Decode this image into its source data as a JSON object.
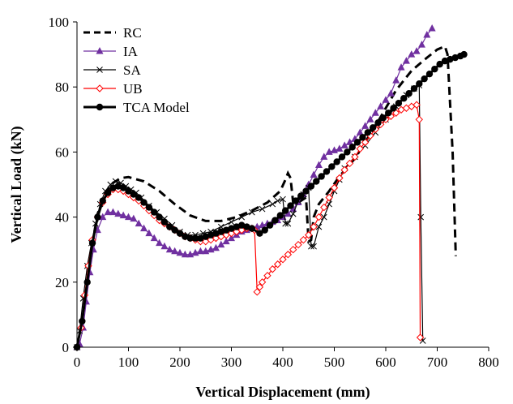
{
  "chart_data": {
    "type": "line",
    "title": "",
    "xlabel": "Vertical Displacement (mm)",
    "ylabel": "Vertical Load (kN)",
    "xlim": [
      0,
      800
    ],
    "ylim": [
      0,
      100
    ],
    "x_ticks": [
      "0",
      "100",
      "200",
      "300",
      "400",
      "500",
      "600",
      "700",
      "800"
    ],
    "y_ticks": [
      "0",
      "20",
      "40",
      "60",
      "80",
      "100"
    ],
    "grid": false,
    "legend_position": "top-left",
    "series": [
      {
        "name": "RC",
        "color": "#000000",
        "style": "dashed",
        "marker": "none",
        "points": [
          [
            0,
            0
          ],
          [
            10,
            8
          ],
          [
            20,
            20
          ],
          [
            30,
            32
          ],
          [
            40,
            41
          ],
          [
            55,
            47
          ],
          [
            70,
            50.5
          ],
          [
            85,
            52
          ],
          [
            100,
            52.3
          ],
          [
            130,
            51
          ],
          [
            160,
            48
          ],
          [
            190,
            44
          ],
          [
            220,
            40.5
          ],
          [
            250,
            38.8
          ],
          [
            280,
            38.8
          ],
          [
            310,
            40
          ],
          [
            340,
            42
          ],
          [
            370,
            44.5
          ],
          [
            395,
            48
          ],
          [
            405,
            51.5
          ],
          [
            410,
            53.5
          ],
          [
            415,
            52
          ],
          [
            420,
            44.5
          ],
          [
            430,
            44.5
          ],
          [
            445,
            46
          ],
          [
            450,
            32.5
          ],
          [
            455,
            33
          ],
          [
            460,
            40
          ],
          [
            470,
            44
          ],
          [
            490,
            48
          ],
          [
            510,
            52.5
          ],
          [
            540,
            58
          ],
          [
            580,
            68
          ],
          [
            620,
            79
          ],
          [
            650,
            85
          ],
          [
            680,
            89
          ],
          [
            700,
            91.5
          ],
          [
            715,
            92.5
          ],
          [
            720,
            90
          ],
          [
            730,
            60
          ],
          [
            736,
            28
          ]
        ]
      },
      {
        "name": "IA",
        "color": "#7030A0",
        "style": "solid",
        "marker": "triangle",
        "points": [
          [
            0,
            0
          ],
          [
            5,
            1
          ],
          [
            12,
            6
          ],
          [
            18,
            14
          ],
          [
            25,
            23
          ],
          [
            32,
            30
          ],
          [
            40,
            36
          ],
          [
            50,
            40
          ],
          [
            60,
            41.5
          ],
          [
            70,
            41.5
          ],
          [
            80,
            41
          ],
          [
            90,
            40.5
          ],
          [
            100,
            40
          ],
          [
            110,
            39.5
          ],
          [
            120,
            38
          ],
          [
            130,
            36.5
          ],
          [
            140,
            35
          ],
          [
            150,
            33.5
          ],
          [
            160,
            32
          ],
          [
            170,
            31
          ],
          [
            180,
            30
          ],
          [
            190,
            29.5
          ],
          [
            200,
            29
          ],
          [
            210,
            28.5
          ],
          [
            220,
            28.5
          ],
          [
            230,
            29
          ],
          [
            240,
            29.5
          ],
          [
            250,
            29.5
          ],
          [
            260,
            30
          ],
          [
            270,
            30.5
          ],
          [
            280,
            31.5
          ],
          [
            290,
            32.5
          ],
          [
            300,
            33.5
          ],
          [
            310,
            34.5
          ],
          [
            320,
            35.5
          ],
          [
            330,
            36
          ],
          [
            340,
            36.5
          ],
          [
            350,
            37
          ],
          [
            360,
            37.5
          ],
          [
            370,
            38
          ],
          [
            380,
            38.5
          ],
          [
            390,
            39
          ],
          [
            400,
            40
          ],
          [
            410,
            41
          ],
          [
            420,
            42.5
          ],
          [
            430,
            44.5
          ],
          [
            440,
            47
          ],
          [
            450,
            50
          ],
          [
            460,
            53
          ],
          [
            470,
            56
          ],
          [
            480,
            58.5
          ],
          [
            490,
            60
          ],
          [
            500,
            60.5
          ],
          [
            510,
            61
          ],
          [
            520,
            62
          ],
          [
            530,
            63
          ],
          [
            540,
            64
          ],
          [
            550,
            66
          ],
          [
            560,
            68
          ],
          [
            570,
            70
          ],
          [
            580,
            72
          ],
          [
            590,
            74
          ],
          [
            600,
            76
          ],
          [
            610,
            78
          ],
          [
            620,
            82
          ],
          [
            630,
            86
          ],
          [
            640,
            88
          ],
          [
            650,
            90
          ],
          [
            660,
            91
          ],
          [
            670,
            93
          ],
          [
            680,
            96
          ],
          [
            690,
            98
          ]
        ]
      },
      {
        "name": "SA",
        "color": "#000000",
        "style": "solid",
        "marker": "x",
        "points": [
          [
            0,
            0
          ],
          [
            5,
            5
          ],
          [
            12,
            15
          ],
          [
            20,
            25
          ],
          [
            28,
            32
          ],
          [
            36,
            38
          ],
          [
            45,
            44
          ],
          [
            55,
            48
          ],
          [
            65,
            50
          ],
          [
            75,
            51
          ],
          [
            85,
            50.5
          ],
          [
            95,
            49.5
          ],
          [
            105,
            48.5
          ],
          [
            115,
            47.5
          ],
          [
            125,
            46
          ],
          [
            140,
            43.5
          ],
          [
            155,
            41.5
          ],
          [
            170,
            39.5
          ],
          [
            185,
            37.5
          ],
          [
            200,
            35.5
          ],
          [
            215,
            34.5
          ],
          [
            230,
            34.5
          ],
          [
            245,
            35
          ],
          [
            260,
            35.5
          ],
          [
            280,
            37
          ],
          [
            300,
            38.5
          ],
          [
            320,
            40
          ],
          [
            340,
            41.5
          ],
          [
            360,
            42.5
          ],
          [
            380,
            44
          ],
          [
            390,
            45
          ],
          [
            400,
            45.5
          ],
          [
            405,
            38
          ],
          [
            410,
            38
          ],
          [
            420,
            41
          ],
          [
            430,
            45
          ],
          [
            440,
            47
          ],
          [
            450,
            49
          ],
          [
            455,
            31
          ],
          [
            460,
            31
          ],
          [
            470,
            37
          ],
          [
            480,
            40
          ],
          [
            490,
            44
          ],
          [
            500,
            48
          ],
          [
            510,
            51.5
          ],
          [
            520,
            55
          ],
          [
            540,
            58.5
          ],
          [
            560,
            62
          ],
          [
            580,
            66
          ],
          [
            600,
            70
          ],
          [
            620,
            74
          ],
          [
            640,
            77.5
          ],
          [
            655,
            79.5
          ],
          [
            665,
            80.5
          ],
          [
            668,
            40
          ],
          [
            672,
            2
          ]
        ]
      },
      {
        "name": "UB",
        "color": "#FF0000",
        "style": "solid",
        "marker": "diamond-open",
        "points": [
          [
            0,
            0
          ],
          [
            8,
            6
          ],
          [
            15,
            16
          ],
          [
            22,
            25
          ],
          [
            30,
            33
          ],
          [
            40,
            40
          ],
          [
            50,
            44.5
          ],
          [
            60,
            47
          ],
          [
            70,
            48.5
          ],
          [
            80,
            48.5
          ],
          [
            90,
            48
          ],
          [
            100,
            47
          ],
          [
            110,
            46
          ],
          [
            120,
            45
          ],
          [
            130,
            43.5
          ],
          [
            140,
            42
          ],
          [
            150,
            40.5
          ],
          [
            160,
            39
          ],
          [
            170,
            38
          ],
          [
            180,
            37
          ],
          [
            190,
            36
          ],
          [
            200,
            35
          ],
          [
            210,
            34
          ],
          [
            220,
            33.5
          ],
          [
            230,
            33
          ],
          [
            240,
            32.5
          ],
          [
            250,
            32.5
          ],
          [
            260,
            33
          ],
          [
            270,
            33.5
          ],
          [
            280,
            34
          ],
          [
            290,
            34.5
          ],
          [
            300,
            35
          ],
          [
            310,
            35.5
          ],
          [
            320,
            36
          ],
          [
            330,
            36.5
          ],
          [
            340,
            36.5
          ],
          [
            345,
            36
          ],
          [
            350,
            17
          ],
          [
            355,
            18.5
          ],
          [
            360,
            20
          ],
          [
            370,
            22
          ],
          [
            380,
            24
          ],
          [
            390,
            25.5
          ],
          [
            400,
            27
          ],
          [
            410,
            28.5
          ],
          [
            420,
            30
          ],
          [
            430,
            31.5
          ],
          [
            440,
            33
          ],
          [
            450,
            34.5
          ],
          [
            460,
            37
          ],
          [
            470,
            40
          ],
          [
            480,
            43
          ],
          [
            490,
            46
          ],
          [
            500,
            49
          ],
          [
            510,
            52
          ],
          [
            520,
            54.5
          ],
          [
            530,
            56.5
          ],
          [
            540,
            58.5
          ],
          [
            550,
            61
          ],
          [
            560,
            63
          ],
          [
            570,
            65
          ],
          [
            580,
            67
          ],
          [
            590,
            68.5
          ],
          [
            600,
            70
          ],
          [
            610,
            71
          ],
          [
            620,
            72
          ],
          [
            630,
            73
          ],
          [
            640,
            73.5
          ],
          [
            650,
            74
          ],
          [
            660,
            74.5
          ],
          [
            665,
            70
          ],
          [
            667,
            3
          ]
        ]
      },
      {
        "name": "TCA Model",
        "color": "#000000",
        "style": "solid",
        "marker": "circle",
        "points": [
          [
            0,
            0
          ],
          [
            10,
            8
          ],
          [
            20,
            20
          ],
          [
            30,
            32
          ],
          [
            40,
            40
          ],
          [
            50,
            45
          ],
          [
            60,
            47.5
          ],
          [
            70,
            49
          ],
          [
            80,
            49.5
          ],
          [
            90,
            49
          ],
          [
            100,
            48
          ],
          [
            110,
            47
          ],
          [
            120,
            46
          ],
          [
            130,
            44.5
          ],
          [
            140,
            43
          ],
          [
            150,
            41.5
          ],
          [
            160,
            40
          ],
          [
            170,
            38.5
          ],
          [
            180,
            37
          ],
          [
            190,
            36
          ],
          [
            200,
            35
          ],
          [
            210,
            34
          ],
          [
            220,
            33.5
          ],
          [
            230,
            33.5
          ],
          [
            240,
            33.5
          ],
          [
            250,
            34
          ],
          [
            260,
            34.5
          ],
          [
            270,
            35
          ],
          [
            280,
            35.5
          ],
          [
            290,
            36
          ],
          [
            300,
            36.5
          ],
          [
            310,
            37
          ],
          [
            320,
            37.5
          ],
          [
            330,
            37
          ],
          [
            340,
            36.5
          ],
          [
            355,
            35
          ],
          [
            365,
            36
          ],
          [
            375,
            37.5
          ],
          [
            385,
            39
          ],
          [
            395,
            40.5
          ],
          [
            405,
            42
          ],
          [
            415,
            43.5
          ],
          [
            425,
            45
          ],
          [
            435,
            46.5
          ],
          [
            445,
            48
          ],
          [
            455,
            49.5
          ],
          [
            465,
            51
          ],
          [
            475,
            52.5
          ],
          [
            485,
            54
          ],
          [
            495,
            55.5
          ],
          [
            505,
            57
          ],
          [
            515,
            58.5
          ],
          [
            525,
            60
          ],
          [
            535,
            61.5
          ],
          [
            545,
            63
          ],
          [
            555,
            64.5
          ],
          [
            565,
            66
          ],
          [
            575,
            67.5
          ],
          [
            585,
            69
          ],
          [
            595,
            70.5
          ],
          [
            605,
            72
          ],
          [
            615,
            73.5
          ],
          [
            625,
            75
          ],
          [
            635,
            76.5
          ],
          [
            645,
            78
          ],
          [
            655,
            79.5
          ],
          [
            665,
            81
          ],
          [
            675,
            82.5
          ],
          [
            685,
            84
          ],
          [
            695,
            85.5
          ],
          [
            705,
            87
          ],
          [
            715,
            88
          ],
          [
            725,
            88.5
          ],
          [
            735,
            89
          ],
          [
            745,
            89.5
          ],
          [
            752,
            90
          ]
        ]
      }
    ]
  }
}
